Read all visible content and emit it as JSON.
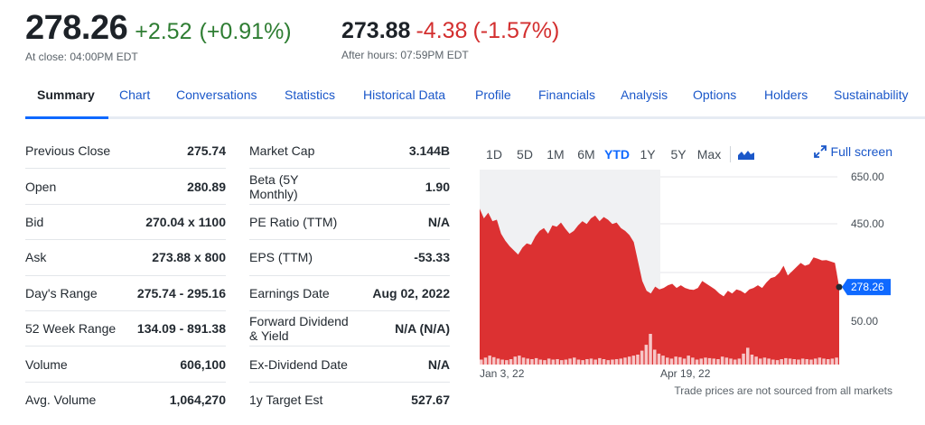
{
  "quote": {
    "price": "278.26",
    "change": "+2.52",
    "change_pct": "(+0.91%)",
    "close_note": "At close: 04:00PM EDT",
    "after_price": "273.88",
    "after_change": "-4.38",
    "after_change_pct": "(-1.57%)",
    "after_note": "After hours: 07:59PM EDT"
  },
  "tabs": [
    "Summary",
    "Chart",
    "Conversations",
    "Statistics",
    "Historical Data",
    "Profile",
    "Financials",
    "Analysis",
    "Options",
    "Holders",
    "Sustainability"
  ],
  "active_tab": "Summary",
  "left_stats": [
    {
      "label": "Previous Close",
      "value": "275.74"
    },
    {
      "label": "Open",
      "value": "280.89"
    },
    {
      "label": "Bid",
      "value": "270.04 x 1100"
    },
    {
      "label": "Ask",
      "value": "273.88 x 800"
    },
    {
      "label": "Day's Range",
      "value": "275.74 - 295.16"
    },
    {
      "label": "52 Week Range",
      "value": "134.09 - 891.38"
    },
    {
      "label": "Volume",
      "value": "606,100"
    },
    {
      "label": "Avg. Volume",
      "value": "1,064,270"
    }
  ],
  "right_stats": [
    {
      "label": "Market Cap",
      "value": "3.144B"
    },
    {
      "label": "Beta (5Y Monthly)",
      "value": "1.90"
    },
    {
      "label": "PE Ratio (TTM)",
      "value": "N/A"
    },
    {
      "label": "EPS (TTM)",
      "value": "-53.33"
    },
    {
      "label": "Earnings Date",
      "value": "Aug 02, 2022"
    },
    {
      "label": "Forward Dividend & Yield",
      "value": "N/A (N/A)"
    },
    {
      "label": "Ex-Dividend Date",
      "value": "N/A"
    },
    {
      "label": "1y Target Est",
      "value": "527.67"
    }
  ],
  "chart": {
    "ranges": [
      "1D",
      "5D",
      "1M",
      "6M",
      "YTD",
      "1Y",
      "5Y",
      "Max"
    ],
    "active_range": "YTD",
    "fullscreen_label": "Full screen",
    "disclaimer": "Trade prices are not sourced from all markets",
    "price_tag": "278.26",
    "colors": {
      "area": "#dc3132",
      "up": "#2e7d32",
      "down": "#d32f2f",
      "accent": "#0f69ff",
      "price_tag": "#0f69ff"
    }
  },
  "chart_data": {
    "type": "area",
    "title": "",
    "xlabel": "",
    "ylabel": "",
    "x_tick_labels": [
      "Jan 3, 22",
      "Apr 19, 22"
    ],
    "y_tick_labels": [
      "650.00",
      "450.00",
      "50.00"
    ],
    "ylim": [
      0,
      700
    ],
    "series": [
      {
        "values": [
          560,
          525,
          545,
          515,
          520,
          470,
          445,
          425,
          410,
          395,
          420,
          435,
          430,
          460,
          480,
          490,
          470,
          500,
          495,
          510,
          488,
          470,
          480,
          500,
          515,
          505,
          525,
          535,
          515,
          530,
          520,
          505,
          510,
          490,
          480,
          465,
          440,
          370,
          300,
          265,
          255,
          280,
          270,
          275,
          285,
          290,
          275,
          285,
          275,
          270,
          268,
          275,
          300,
          290,
          280,
          270,
          255,
          245,
          265,
          255,
          270,
          265,
          255,
          270,
          275,
          285,
          275,
          295,
          310,
          315,
          330,
          355,
          320,
          335,
          350,
          365,
          355,
          360,
          385,
          380,
          374,
          375,
          370,
          365,
          278
        ]
      }
    ],
    "volume": [
      10,
      14,
      18,
      15,
      12,
      10,
      9,
      11,
      16,
      18,
      14,
      12,
      11,
      13,
      10,
      9,
      12,
      10,
      11,
      9,
      10,
      12,
      14,
      10,
      9,
      11,
      12,
      10,
      13,
      11,
      9,
      10,
      11,
      12,
      14,
      16,
      18,
      20,
      28,
      40,
      62,
      30,
      22,
      18,
      14,
      12,
      16,
      15,
      12,
      18,
      14,
      10,
      12,
      14,
      13,
      12,
      11,
      16,
      14,
      12,
      10,
      12,
      22,
      34,
      20,
      16,
      12,
      14,
      12,
      10,
      9,
      11,
      13,
      12,
      11,
      10,
      12,
      11,
      10,
      12,
      14,
      12,
      11,
      12,
      14
    ],
    "last_price": 278.26
  }
}
